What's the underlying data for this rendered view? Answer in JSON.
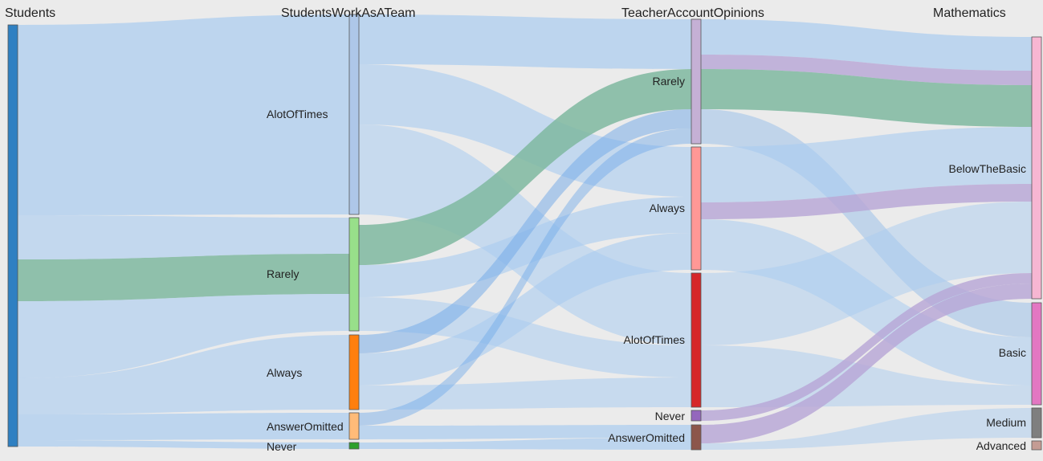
{
  "columns": [
    {
      "id": "students",
      "title": "Students"
    },
    {
      "id": "work",
      "title": "StudentsWorkAsATeam"
    },
    {
      "id": "teacher",
      "title": "TeacherAccountOpinions"
    },
    {
      "id": "math",
      "title": "Mathematics"
    }
  ],
  "nodes": {
    "students": {
      "label": "",
      "color": "#2f80c2"
    },
    "work_alot": {
      "label": "AlotOfTimes",
      "color": "#aec7e8"
    },
    "work_rarely": {
      "label": "Rarely",
      "color": "#98df8a"
    },
    "work_always": {
      "label": "Always",
      "color": "#ff7f0e"
    },
    "work_omitted": {
      "label": "AnswerOmitted",
      "color": "#ffbb78"
    },
    "work_never": {
      "label": "Never",
      "color": "#2ca02c"
    },
    "teach_rarely": {
      "label": "Rarely",
      "color": "#c5b0d5"
    },
    "teach_always": {
      "label": "Always",
      "color": "#ff9896"
    },
    "teach_alot": {
      "label": "AlotOfTimes",
      "color": "#d62728"
    },
    "teach_never": {
      "label": "Never",
      "color": "#9467bd"
    },
    "teach_omitted": {
      "label": "AnswerOmitted",
      "color": "#8c564b"
    },
    "math_below": {
      "label": "BelowTheBasic",
      "color": "#f7b6d2"
    },
    "math_basic": {
      "label": "Basic",
      "color": "#e377c2"
    },
    "math_medium": {
      "label": "Medium",
      "color": "#7f7f7f"
    },
    "math_advanced": {
      "label": "Advanced",
      "color": "#c49c94"
    }
  },
  "links_note": "",
  "colors": {
    "link_default": "#a9ccf0",
    "link_green": "#7fb8a0",
    "link_purple": "#b7a5d6",
    "link_blue_strong": "#6fa8e8",
    "background": "#ebebeb"
  }
}
